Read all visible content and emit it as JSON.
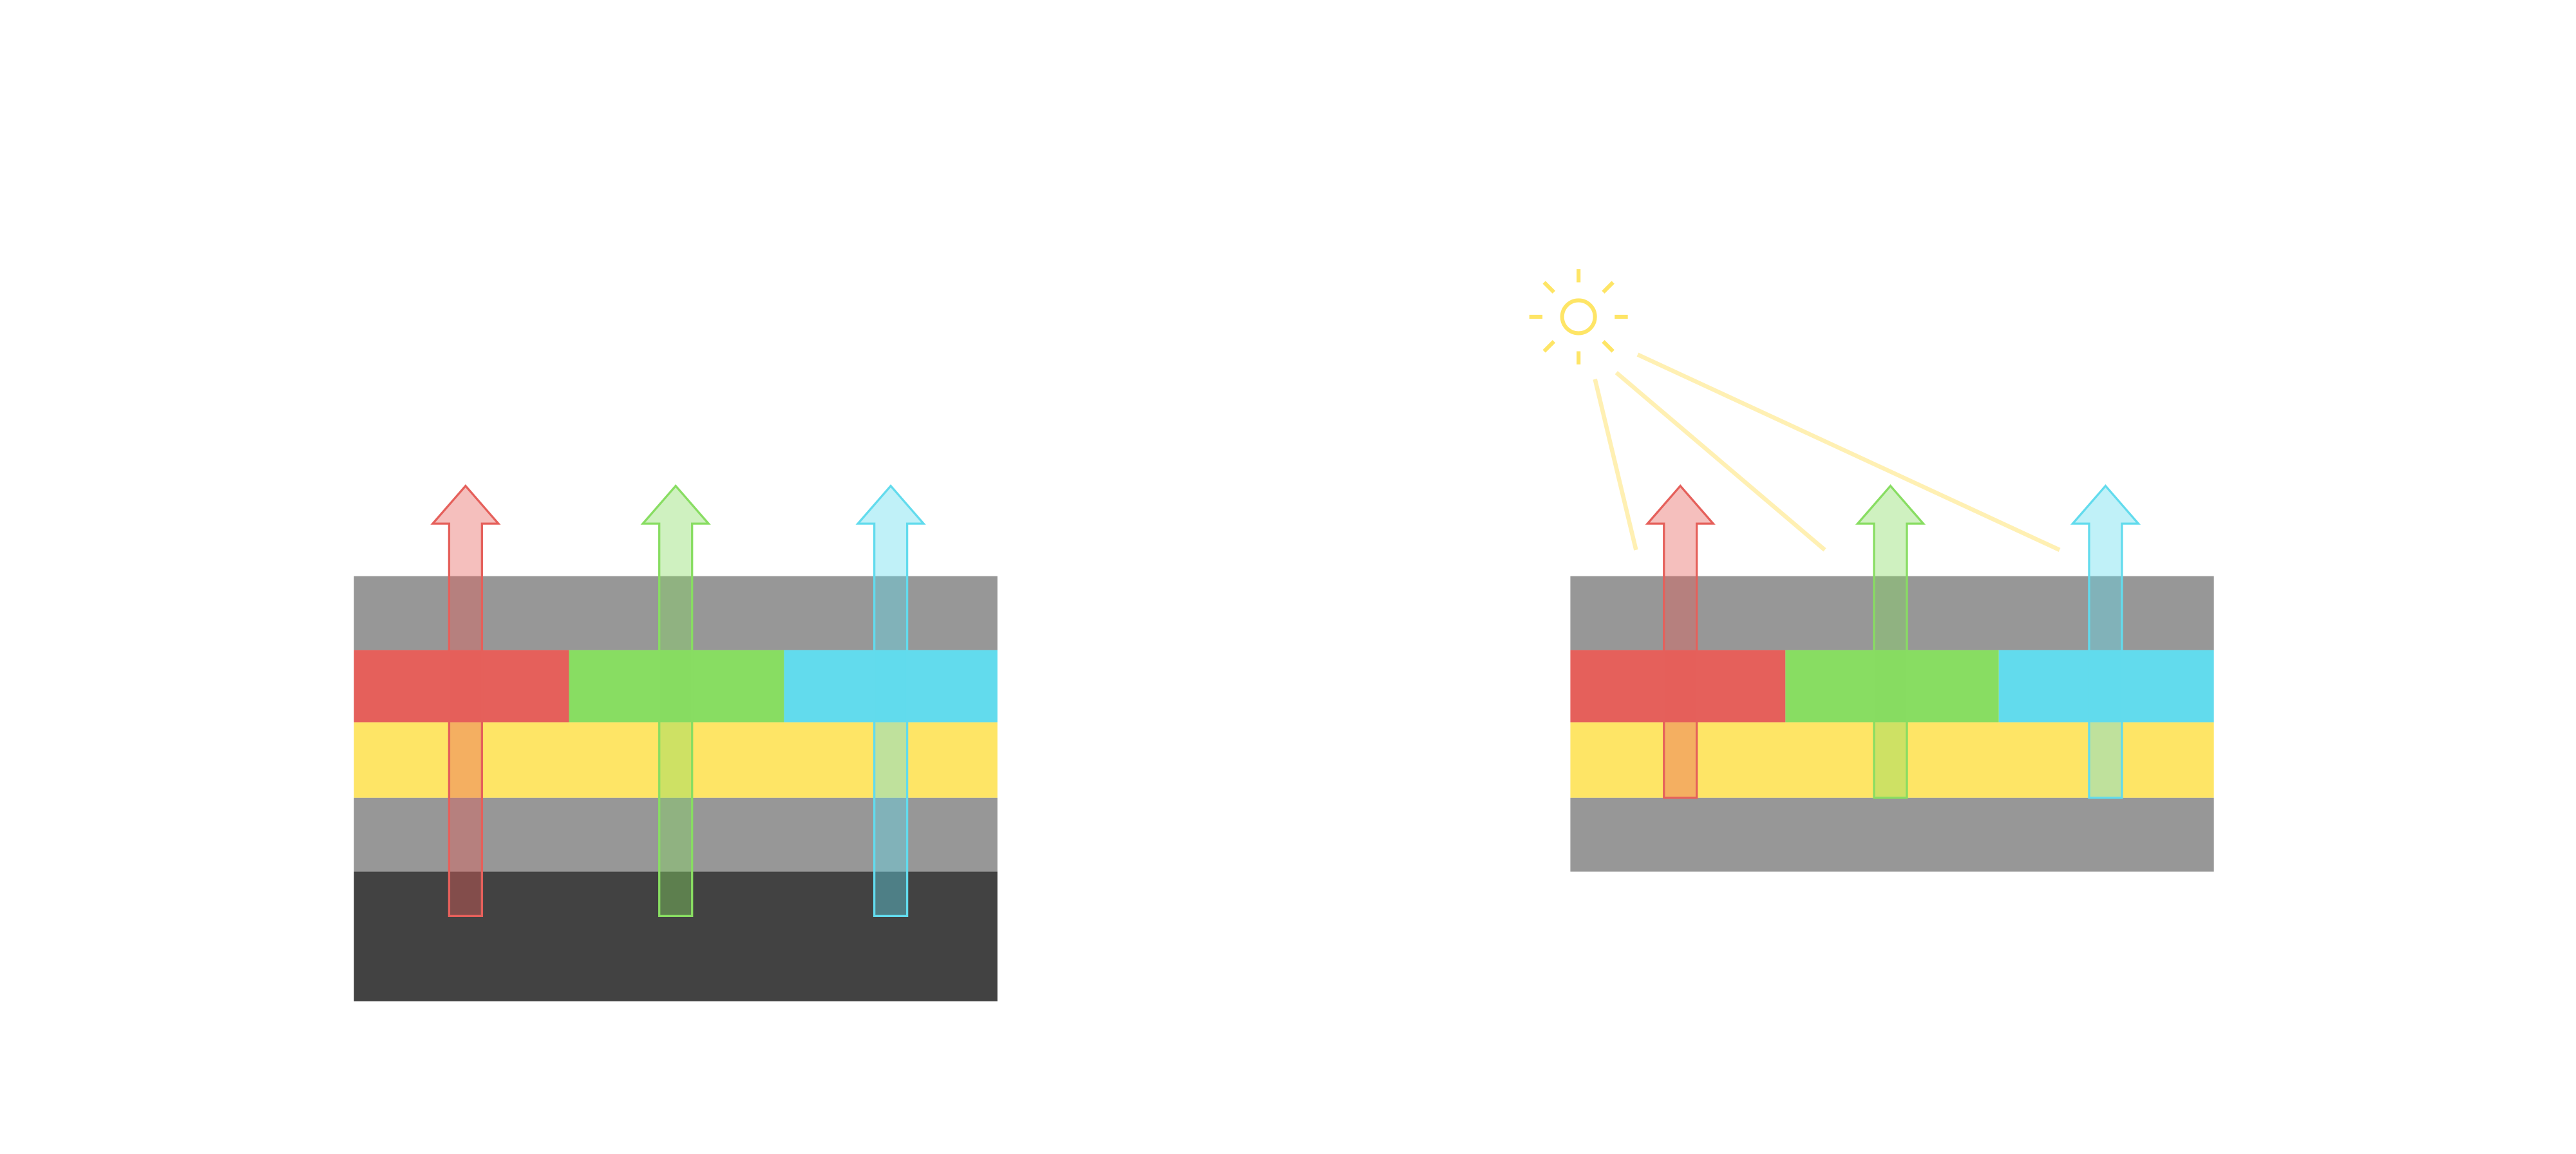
{
  "colors": {
    "gray_layer": "#979797",
    "dark_layer": "#424242",
    "red": "#e5605b",
    "green": "#88dd62",
    "cyan": "#62dbed",
    "yellow": "#fee566",
    "red_arrow_fill": "rgba(229,96,91,0.4)",
    "green_arrow_fill": "rgba(136,221,98,0.4)",
    "cyan_arrow_fill": "rgba(98,219,237,0.4)",
    "sun": "#fee566",
    "sun_ray": "#fff0b3"
  },
  "left_stack": {
    "layers": [
      "gray",
      "red-green-cyan",
      "yellow",
      "gray",
      "dark"
    ]
  },
  "right_stack": {
    "layers": [
      "gray",
      "red-green-cyan",
      "yellow",
      "gray"
    ],
    "light_source": "sun-icon"
  }
}
